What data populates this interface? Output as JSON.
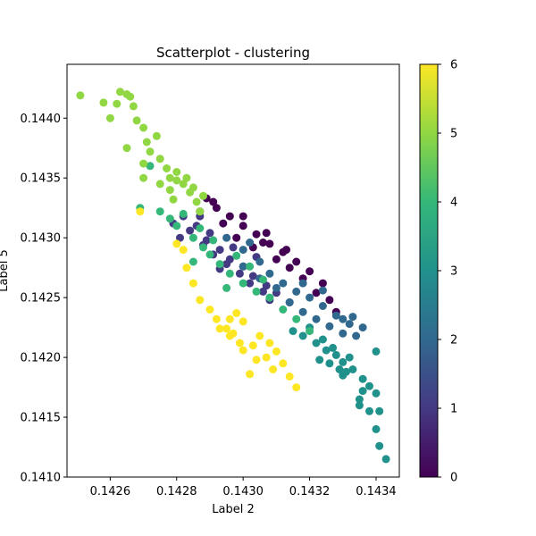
{
  "chart_data": {
    "type": "scatter",
    "title": "Scatterplot - clustering",
    "xlabel": "Label 2",
    "ylabel": "Label 5",
    "xlim": [
      0.14247,
      0.14347
    ],
    "ylim": [
      0.141,
      0.14445
    ],
    "xticks": [
      0.1426,
      0.1428,
      0.143,
      0.1432,
      0.1434
    ],
    "xtick_labels": [
      "0.1426",
      "0.1428",
      "0.1430",
      "0.1432",
      "0.1434"
    ],
    "yticks": [
      0.141,
      0.1415,
      0.142,
      0.1425,
      0.143,
      0.1435,
      0.144
    ],
    "ytick_labels": [
      "0.1410",
      "0.1415",
      "0.1420",
      "0.1425",
      "0.1430",
      "0.1435",
      "0.1440"
    ],
    "grid": false,
    "colormap": "viridis",
    "colorbar": {
      "min": 0,
      "max": 6,
      "ticks": [
        0,
        1,
        2,
        3,
        4,
        5,
        6
      ],
      "tick_labels": [
        "0",
        "1",
        "2",
        "3",
        "4",
        "5",
        "6"
      ]
    },
    "clusters": [
      {
        "label": 0,
        "points": [
          [
            0.14289,
            0.14333
          ],
          [
            0.14292,
            0.14325
          ],
          [
            0.14296,
            0.14318
          ],
          [
            0.143,
            0.1431
          ],
          [
            0.14304,
            0.14303
          ],
          [
            0.14308,
            0.14295
          ],
          [
            0.14312,
            0.14288
          ],
          [
            0.14316,
            0.1428
          ],
          [
            0.1432,
            0.14272
          ],
          [
            0.14324,
            0.14262
          ],
          [
            0.14287,
            0.14322
          ],
          [
            0.14294,
            0.14312
          ],
          [
            0.14298,
            0.143
          ],
          [
            0.14303,
            0.14292
          ],
          [
            0.1431,
            0.14282
          ],
          [
            0.14314,
            0.14275
          ],
          [
            0.14318,
            0.14266
          ],
          [
            0.14322,
            0.14254
          ],
          [
            0.14326,
            0.14248
          ],
          [
            0.14306,
            0.14296
          ],
          [
            0.14291,
            0.1433
          ],
          [
            0.143,
            0.14318
          ],
          [
            0.14307,
            0.14304
          ],
          [
            0.14313,
            0.1429
          ],
          [
            0.14328,
            0.14238
          ]
        ]
      },
      {
        "label": 1,
        "points": [
          [
            0.14282,
            0.14318
          ],
          [
            0.14286,
            0.1431
          ],
          [
            0.14289,
            0.14298
          ],
          [
            0.14293,
            0.1429
          ],
          [
            0.14296,
            0.14282
          ],
          [
            0.143,
            0.14276
          ],
          [
            0.14303,
            0.14268
          ],
          [
            0.14307,
            0.1426
          ],
          [
            0.1431,
            0.14254
          ],
          [
            0.14314,
            0.14246
          ],
          [
            0.14284,
            0.14306
          ],
          [
            0.14288,
            0.14294
          ],
          [
            0.14291,
            0.14286
          ],
          [
            0.14295,
            0.14278
          ],
          [
            0.14299,
            0.1427
          ],
          [
            0.14302,
            0.14262
          ],
          [
            0.14306,
            0.14255
          ],
          [
            0.14279,
            0.14312
          ],
          [
            0.1429,
            0.14304
          ],
          [
            0.14297,
            0.14292
          ],
          [
            0.14281,
            0.143
          ],
          [
            0.14293,
            0.14274
          ],
          [
            0.14304,
            0.14284
          ],
          [
            0.14287,
            0.14318
          ],
          [
            0.14308,
            0.14248
          ]
        ]
      },
      {
        "label": 2,
        "points": [
          [
            0.14295,
            0.143
          ],
          [
            0.143,
            0.1429
          ],
          [
            0.14305,
            0.1428
          ],
          [
            0.14308,
            0.1427
          ],
          [
            0.14312,
            0.14262
          ],
          [
            0.14316,
            0.14255
          ],
          [
            0.1432,
            0.1425
          ],
          [
            0.14324,
            0.14243
          ],
          [
            0.14328,
            0.14235
          ],
          [
            0.14332,
            0.14228
          ],
          [
            0.143,
            0.14276
          ],
          [
            0.14305,
            0.14266
          ],
          [
            0.1431,
            0.14258
          ],
          [
            0.14314,
            0.14246
          ],
          [
            0.14318,
            0.14238
          ],
          [
            0.14322,
            0.14232
          ],
          [
            0.14326,
            0.14226
          ],
          [
            0.1433,
            0.14232
          ],
          [
            0.14333,
            0.14234
          ],
          [
            0.14336,
            0.14225
          ],
          [
            0.1433,
            0.1422
          ],
          [
            0.14334,
            0.14218
          ],
          [
            0.14318,
            0.14262
          ],
          [
            0.14324,
            0.14256
          ],
          [
            0.14302,
            0.14296
          ]
        ]
      },
      {
        "label": 3,
        "points": [
          [
            0.14318,
            0.14218
          ],
          [
            0.14322,
            0.14212
          ],
          [
            0.14325,
            0.14206
          ],
          [
            0.14328,
            0.14202
          ],
          [
            0.1433,
            0.14196
          ],
          [
            0.14333,
            0.1419
          ],
          [
            0.14336,
            0.14182
          ],
          [
            0.14338,
            0.14176
          ],
          [
            0.1434,
            0.1417
          ],
          [
            0.1433,
            0.14185
          ],
          [
            0.14335,
            0.14165
          ],
          [
            0.14338,
            0.14155
          ],
          [
            0.1434,
            0.1414
          ],
          [
            0.14341,
            0.14126
          ],
          [
            0.14343,
            0.14115
          ],
          [
            0.1432,
            0.14225
          ],
          [
            0.14324,
            0.14215
          ],
          [
            0.14327,
            0.14208
          ],
          [
            0.14332,
            0.142
          ],
          [
            0.14329,
            0.1419
          ],
          [
            0.14326,
            0.14195
          ],
          [
            0.14336,
            0.14172
          ],
          [
            0.1434,
            0.14205
          ],
          [
            0.14341,
            0.14155
          ],
          [
            0.14335,
            0.1416
          ],
          [
            0.14315,
            0.14222
          ],
          [
            0.14323,
            0.14198
          ],
          [
            0.14331,
            0.14188
          ]
        ]
      },
      {
        "label": 4,
        "points": [
          [
            0.14269,
            0.14325
          ],
          [
            0.14272,
            0.1436
          ],
          [
            0.14275,
            0.14322
          ],
          [
            0.14278,
            0.14316
          ],
          [
            0.1428,
            0.1431
          ],
          [
            0.14285,
            0.143
          ],
          [
            0.14288,
            0.14292
          ],
          [
            0.1429,
            0.14286
          ],
          [
            0.14293,
            0.14278
          ],
          [
            0.14296,
            0.1427
          ],
          [
            0.143,
            0.14262
          ],
          [
            0.14304,
            0.14255
          ],
          [
            0.14308,
            0.1425
          ],
          [
            0.14312,
            0.1424
          ],
          [
            0.14316,
            0.14232
          ],
          [
            0.1432,
            0.14222
          ],
          [
            0.14282,
            0.1432
          ],
          [
            0.14287,
            0.14308
          ],
          [
            0.14291,
            0.14298
          ],
          [
            0.14298,
            0.14285
          ],
          [
            0.14302,
            0.14276
          ],
          [
            0.14306,
            0.14265
          ],
          [
            0.14285,
            0.1428
          ],
          [
            0.14295,
            0.14258
          ]
        ]
      },
      {
        "label": 5,
        "points": [
          [
            0.14251,
            0.14419
          ],
          [
            0.14258,
            0.14413
          ],
          [
            0.1426,
            0.144
          ],
          [
            0.14262,
            0.14412
          ],
          [
            0.14263,
            0.14422
          ],
          [
            0.14265,
            0.1442
          ],
          [
            0.14266,
            0.14418
          ],
          [
            0.14267,
            0.1441
          ],
          [
            0.14265,
            0.14375
          ],
          [
            0.14268,
            0.14398
          ],
          [
            0.1427,
            0.14392
          ],
          [
            0.14271,
            0.1438
          ],
          [
            0.14272,
            0.14372
          ],
          [
            0.1427,
            0.14362
          ],
          [
            0.14275,
            0.14366
          ],
          [
            0.14277,
            0.14358
          ],
          [
            0.14278,
            0.1435
          ],
          [
            0.1428,
            0.14348
          ],
          [
            0.14282,
            0.14345
          ],
          [
            0.14284,
            0.14338
          ],
          [
            0.14286,
            0.1433
          ],
          [
            0.14275,
            0.14345
          ],
          [
            0.14278,
            0.1434
          ],
          [
            0.1428,
            0.14355
          ],
          [
            0.14283,
            0.1435
          ],
          [
            0.14285,
            0.14342
          ],
          [
            0.14288,
            0.14335
          ],
          [
            0.1427,
            0.1435
          ],
          [
            0.14274,
            0.14385
          ],
          [
            0.14279,
            0.14332
          ],
          [
            0.14287,
            0.14322
          ]
        ]
      },
      {
        "label": 6,
        "points": [
          [
            0.14269,
            0.14322
          ],
          [
            0.1428,
            0.14295
          ],
          [
            0.14282,
            0.1429
          ],
          [
            0.14283,
            0.14275
          ],
          [
            0.14285,
            0.14262
          ],
          [
            0.14287,
            0.14248
          ],
          [
            0.1429,
            0.1424
          ],
          [
            0.14292,
            0.14232
          ],
          [
            0.14293,
            0.14224
          ],
          [
            0.14295,
            0.14224
          ],
          [
            0.14296,
            0.14232
          ],
          [
            0.14298,
            0.14237
          ],
          [
            0.143,
            0.1423
          ],
          [
            0.14297,
            0.1422
          ],
          [
            0.14299,
            0.14212
          ],
          [
            0.143,
            0.14206
          ],
          [
            0.14303,
            0.1421
          ],
          [
            0.14305,
            0.14218
          ],
          [
            0.14307,
            0.142
          ],
          [
            0.14309,
            0.1419
          ],
          [
            0.14302,
            0.14186
          ],
          [
            0.14304,
            0.14198
          ],
          [
            0.14308,
            0.14212
          ],
          [
            0.14312,
            0.14195
          ],
          [
            0.14314,
            0.14184
          ],
          [
            0.14316,
            0.14175
          ],
          [
            0.1431,
            0.14205
          ],
          [
            0.14296,
            0.14218
          ]
        ]
      }
    ]
  }
}
